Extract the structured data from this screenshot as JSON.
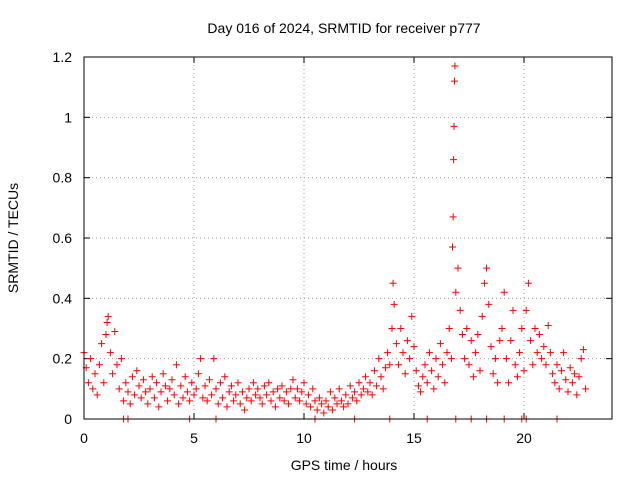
{
  "chart_data": {
    "type": "scatter",
    "title": "Day 016 of 2024, SRMTID for receiver p777",
    "xlabel": "GPS time / hours",
    "ylabel": "SRMTID / TECUs",
    "xlim": [
      0,
      24
    ],
    "ylim": [
      0,
      1.2
    ],
    "xticks": [
      0,
      5,
      10,
      15,
      20
    ],
    "xtick_labels": [
      "0",
      "5",
      "10",
      "15",
      "20"
    ],
    "yticks": [
      0,
      0.2,
      0.4,
      0.6,
      0.8,
      1.0,
      1.2
    ],
    "ytick_labels": [
      "0",
      "0.2",
      "0.4",
      "0.6",
      "0.8",
      "1",
      "1.2"
    ],
    "grid": true,
    "marker": "+",
    "color": "#ff0000",
    "series": [
      {
        "name": "SRMTID",
        "points": [
          [
            0.0,
            0.22
          ],
          [
            0.1,
            0.17
          ],
          [
            0.2,
            0.12
          ],
          [
            0.3,
            0.2
          ],
          [
            0.4,
            0.1
          ],
          [
            0.5,
            0.15
          ],
          [
            0.6,
            0.08
          ],
          [
            0.7,
            0.18
          ],
          [
            0.8,
            0.25
          ],
          [
            0.9,
            0.12
          ],
          [
            1.0,
            0.28
          ],
          [
            1.05,
            0.32
          ],
          [
            1.1,
            0.34
          ],
          [
            1.2,
            0.22
          ],
          [
            1.3,
            0.15
          ],
          [
            1.4,
            0.29
          ],
          [
            1.5,
            0.18
          ],
          [
            1.6,
            0.1
          ],
          [
            1.7,
            0.2
          ],
          [
            1.8,
            0.06
          ],
          [
            1.9,
            0.12
          ],
          [
            2.0,
            0.09
          ],
          [
            2.1,
            0.05
          ],
          [
            2.2,
            0.14
          ],
          [
            2.3,
            0.08
          ],
          [
            2.4,
            0.16
          ],
          [
            2.5,
            0.11
          ],
          [
            2.6,
            0.07
          ],
          [
            2.7,
            0.13
          ],
          [
            2.8,
            0.09
          ],
          [
            2.9,
            0.05
          ],
          [
            3.0,
            0.1
          ],
          [
            3.1,
            0.14
          ],
          [
            3.2,
            0.07
          ],
          [
            3.3,
            0.12
          ],
          [
            3.4,
            0.04
          ],
          [
            3.5,
            0.09
          ],
          [
            3.6,
            0.15
          ],
          [
            3.7,
            0.11
          ],
          [
            3.8,
            0.06
          ],
          [
            3.9,
            0.1
          ],
          [
            4.0,
            0.13
          ],
          [
            4.1,
            0.08
          ],
          [
            4.2,
            0.18
          ],
          [
            4.3,
            0.05
          ],
          [
            4.4,
            0.11
          ],
          [
            4.5,
            0.07
          ],
          [
            4.6,
            0.14
          ],
          [
            4.7,
            0.09
          ],
          [
            4.8,
            0.06
          ],
          [
            4.9,
            0.12
          ],
          [
            5.0,
            0.08
          ],
          [
            5.1,
            0.1
          ],
          [
            5.2,
            0.15
          ],
          [
            5.3,
            0.2
          ],
          [
            5.4,
            0.07
          ],
          [
            5.5,
            0.11
          ],
          [
            5.6,
            0.06
          ],
          [
            5.7,
            0.13
          ],
          [
            5.8,
            0.08
          ],
          [
            5.9,
            0.2
          ],
          [
            6.0,
            0.1
          ],
          [
            6.1,
            0.05
          ],
          [
            6.2,
            0.12
          ],
          [
            6.3,
            0.07
          ],
          [
            6.4,
            0.14
          ],
          [
            6.5,
            0.04
          ],
          [
            6.6,
            0.09
          ],
          [
            6.7,
            0.11
          ],
          [
            6.8,
            0.06
          ],
          [
            6.9,
            0.08
          ],
          [
            7.0,
            0.12
          ],
          [
            7.1,
            0.05
          ],
          [
            7.2,
            0.09
          ],
          [
            7.3,
            0.03
          ],
          [
            7.4,
            0.07
          ],
          [
            7.5,
            0.1
          ],
          [
            7.6,
            0.06
          ],
          [
            7.7,
            0.12
          ],
          [
            7.8,
            0.08
          ],
          [
            7.9,
            0.1
          ],
          [
            8.0,
            0.07
          ],
          [
            8.1,
            0.05
          ],
          [
            8.2,
            0.11
          ],
          [
            8.3,
            0.08
          ],
          [
            8.4,
            0.12
          ],
          [
            8.5,
            0.06
          ],
          [
            8.6,
            0.09
          ],
          [
            8.7,
            0.04
          ],
          [
            8.8,
            0.1
          ],
          [
            8.9,
            0.07
          ],
          [
            9.0,
            0.11
          ],
          [
            9.1,
            0.06
          ],
          [
            9.2,
            0.09
          ],
          [
            9.3,
            0.05
          ],
          [
            9.4,
            0.1
          ],
          [
            9.5,
            0.13
          ],
          [
            9.6,
            0.07
          ],
          [
            9.7,
            0.1
          ],
          [
            9.8,
            0.06
          ],
          [
            9.9,
            0.09
          ],
          [
            10.0,
            0.12
          ],
          [
            10.1,
            0.05
          ],
          [
            10.2,
            0.08
          ],
          [
            10.3,
            0.04
          ],
          [
            10.4,
            0.1
          ],
          [
            10.5,
            0.06
          ],
          [
            10.6,
            0.03
          ],
          [
            10.7,
            0.07
          ],
          [
            10.8,
            0.05
          ],
          [
            10.9,
            0.02
          ],
          [
            11.0,
            0.06
          ],
          [
            11.1,
            0.04
          ],
          [
            11.2,
            0.09
          ],
          [
            11.3,
            0.03
          ],
          [
            11.4,
            0.07
          ],
          [
            11.5,
            0.05
          ],
          [
            11.6,
            0.1
          ],
          [
            11.7,
            0.06
          ],
          [
            11.8,
            0.04
          ],
          [
            11.9,
            0.08
          ],
          [
            12.0,
            0.05
          ],
          [
            12.1,
            0.11
          ],
          [
            12.2,
            0.07
          ],
          [
            12.3,
            0.09
          ],
          [
            12.4,
            0.06
          ],
          [
            12.5,
            0.12
          ],
          [
            12.6,
            0.08
          ],
          [
            12.7,
            0.1
          ],
          [
            12.8,
            0.14
          ],
          [
            12.9,
            0.09
          ],
          [
            13.0,
            0.12
          ],
          [
            13.1,
            0.08
          ],
          [
            13.2,
            0.16
          ],
          [
            13.3,
            0.11
          ],
          [
            13.4,
            0.2
          ],
          [
            13.5,
            0.14
          ],
          [
            13.6,
            0.1
          ],
          [
            13.7,
            0.17
          ],
          [
            13.8,
            0.22
          ],
          [
            13.9,
            0.18
          ],
          [
            14.0,
            0.3
          ],
          [
            14.05,
            0.45
          ],
          [
            14.1,
            0.38
          ],
          [
            14.2,
            0.25
          ],
          [
            14.3,
            0.18
          ],
          [
            14.4,
            0.3
          ],
          [
            14.5,
            0.22
          ],
          [
            14.6,
            0.15
          ],
          [
            14.7,
            0.26
          ],
          [
            14.8,
            0.2
          ],
          [
            14.9,
            0.34
          ],
          [
            15.0,
            0.24
          ],
          [
            15.1,
            0.16
          ],
          [
            15.2,
            0.11
          ],
          [
            15.3,
            0.09
          ],
          [
            15.4,
            0.14
          ],
          [
            15.5,
            0.18
          ],
          [
            15.6,
            0.12
          ],
          [
            15.7,
            0.22
          ],
          [
            15.8,
            0.16
          ],
          [
            15.9,
            0.1
          ],
          [
            16.0,
            0.2
          ],
          [
            16.1,
            0.14
          ],
          [
            16.2,
            0.25
          ],
          [
            16.3,
            0.18
          ],
          [
            16.4,
            0.12
          ],
          [
            16.5,
            0.22
          ],
          [
            16.6,
            0.3
          ],
          [
            16.7,
            0.2
          ],
          [
            16.75,
            0.57
          ],
          [
            16.78,
            0.67
          ],
          [
            16.8,
            0.86
          ],
          [
            16.82,
            0.97
          ],
          [
            16.84,
            1.12
          ],
          [
            16.86,
            1.17
          ],
          [
            16.9,
            0.42
          ],
          [
            17.0,
            0.5
          ],
          [
            17.1,
            0.36
          ],
          [
            17.2,
            0.28
          ],
          [
            17.3,
            0.2
          ],
          [
            17.4,
            0.3
          ],
          [
            17.5,
            0.18
          ],
          [
            17.6,
            0.26
          ],
          [
            17.7,
            0.14
          ],
          [
            17.8,
            0.22
          ],
          [
            17.9,
            0.28
          ],
          [
            18.0,
            0.16
          ],
          [
            18.1,
            0.34
          ],
          [
            18.2,
            0.45
          ],
          [
            18.3,
            0.5
          ],
          [
            18.4,
            0.38
          ],
          [
            18.5,
            0.24
          ],
          [
            18.6,
            0.15
          ],
          [
            18.7,
            0.2
          ],
          [
            18.8,
            0.12
          ],
          [
            18.9,
            0.26
          ],
          [
            19.0,
            0.3
          ],
          [
            19.1,
            0.42
          ],
          [
            19.2,
            0.2
          ],
          [
            19.3,
            0.12
          ],
          [
            19.4,
            0.26
          ],
          [
            19.5,
            0.36
          ],
          [
            19.6,
            0.18
          ],
          [
            19.7,
            0.14
          ],
          [
            19.8,
            0.22
          ],
          [
            19.9,
            0.3
          ],
          [
            20.0,
            0.16
          ],
          [
            20.1,
            0.36
          ],
          [
            20.2,
            0.45
          ],
          [
            20.3,
            0.26
          ],
          [
            20.4,
            0.18
          ],
          [
            20.5,
            0.3
          ],
          [
            20.6,
            0.22
          ],
          [
            20.7,
            0.28
          ],
          [
            20.8,
            0.2
          ],
          [
            20.9,
            0.24
          ],
          [
            21.0,
            0.18
          ],
          [
            21.1,
            0.31
          ],
          [
            21.2,
            0.22
          ],
          [
            21.3,
            0.15
          ],
          [
            21.4,
            0.12
          ],
          [
            21.5,
            0.18
          ],
          [
            21.6,
            0.1
          ],
          [
            21.7,
            0.16
          ],
          [
            21.8,
            0.22
          ],
          [
            21.9,
            0.13
          ],
          [
            22.0,
            0.09
          ],
          [
            22.1,
            0.17
          ],
          [
            22.2,
            0.12
          ],
          [
            22.3,
            0.15
          ],
          [
            22.4,
            0.08
          ],
          [
            22.5,
            0.14
          ],
          [
            22.6,
            0.2
          ],
          [
            22.7,
            0.23
          ],
          [
            22.8,
            0.1
          ],
          [
            1.8,
            0.0
          ],
          [
            2.0,
            0.0
          ],
          [
            4.8,
            0.0
          ],
          [
            6.0,
            0.0
          ],
          [
            10.5,
            0.0
          ],
          [
            12.3,
            0.0
          ],
          [
            13.9,
            0.0
          ],
          [
            15.6,
            0.0
          ],
          [
            16.9,
            0.0
          ],
          [
            17.6,
            0.0
          ],
          [
            18.3,
            0.0
          ],
          [
            19.1,
            0.0
          ],
          [
            19.9,
            0.0
          ],
          [
            20.1,
            0.0
          ],
          [
            21.5,
            0.0
          ]
        ]
      }
    ]
  }
}
